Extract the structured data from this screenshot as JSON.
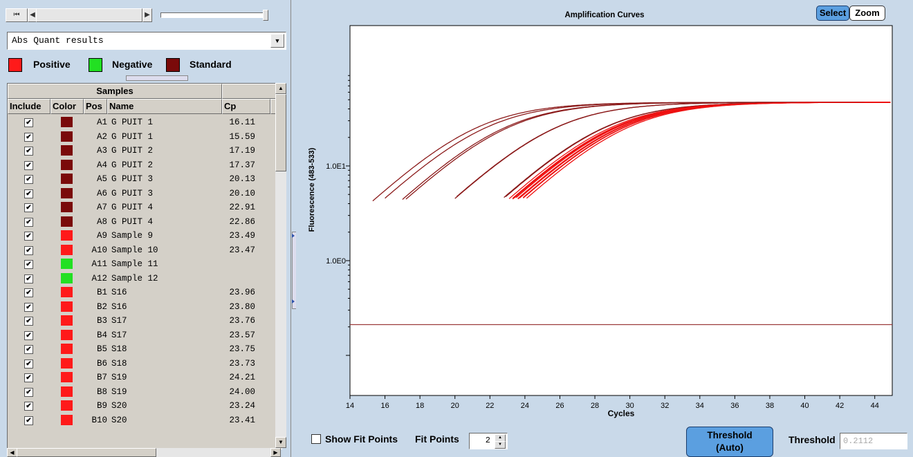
{
  "toolbar": {
    "nav_first_icon": "skip-start-icon",
    "nav_prev_icon": "arrow-left-icon",
    "nav_next_icon": "arrow-right-icon"
  },
  "dropdown": {
    "value": "Abs Quant results"
  },
  "legend": [
    {
      "label": "Positive",
      "color": "#ff1a1a"
    },
    {
      "label": "Negative",
      "color": "#22e022"
    },
    {
      "label": "Standard",
      "color": "#7a0a0a"
    }
  ],
  "table": {
    "group_header": "Samples",
    "headers": {
      "include": "Include",
      "color": "Color",
      "pos": "Pos",
      "name": "Name",
      "cp": "Cp"
    },
    "rows": [
      {
        "pos": "A1",
        "name": "G PUIT 1",
        "cp": "16.11",
        "type": "standard"
      },
      {
        "pos": "A2",
        "name": "G PUIT 1",
        "cp": "15.59",
        "type": "standard"
      },
      {
        "pos": "A3",
        "name": "G PUIT 2",
        "cp": "17.19",
        "type": "standard"
      },
      {
        "pos": "A4",
        "name": "G PUIT 2",
        "cp": "17.37",
        "type": "standard"
      },
      {
        "pos": "A5",
        "name": "G PUIT 3",
        "cp": "20.13",
        "type": "standard"
      },
      {
        "pos": "A6",
        "name": "G PUIT 3",
        "cp": "20.10",
        "type": "standard"
      },
      {
        "pos": "A7",
        "name": "G PUIT 4",
        "cp": "22.91",
        "type": "standard"
      },
      {
        "pos": "A8",
        "name": "G PUIT 4",
        "cp": "22.86",
        "type": "standard"
      },
      {
        "pos": "A9",
        "name": "Sample 9",
        "cp": "23.49",
        "type": "positive"
      },
      {
        "pos": "A10",
        "name": "Sample 10",
        "cp": "23.47",
        "type": "positive"
      },
      {
        "pos": "A11",
        "name": "Sample 11",
        "cp": "",
        "type": "negative"
      },
      {
        "pos": "A12",
        "name": "Sample 12",
        "cp": "",
        "type": "negative"
      },
      {
        "pos": "B1",
        "name": "S16",
        "cp": "23.96",
        "type": "positive"
      },
      {
        "pos": "B2",
        "name": "S16",
        "cp": "23.80",
        "type": "positive"
      },
      {
        "pos": "B3",
        "name": "S17",
        "cp": "23.76",
        "type": "positive"
      },
      {
        "pos": "B4",
        "name": "S17",
        "cp": "23.57",
        "type": "positive"
      },
      {
        "pos": "B5",
        "name": "S18",
        "cp": "23.75",
        "type": "positive"
      },
      {
        "pos": "B6",
        "name": "S18",
        "cp": "23.73",
        "type": "positive"
      },
      {
        "pos": "B7",
        "name": "S19",
        "cp": "24.21",
        "type": "positive"
      },
      {
        "pos": "B8",
        "name": "S19",
        "cp": "24.00",
        "type": "positive"
      },
      {
        "pos": "B9",
        "name": "S20",
        "cp": "23.24",
        "type": "positive"
      },
      {
        "pos": "B10",
        "name": "S20",
        "cp": "23.41",
        "type": "positive"
      }
    ]
  },
  "chart_header": {
    "title": "Amplification Curves",
    "select_label": "Select",
    "zoom_label": "Zoom"
  },
  "chart_data": {
    "type": "line",
    "title": "Amplification Curves",
    "xlabel": "Cycles",
    "ylabel": "Fluorescence (483-533)",
    "xlim": [
      14,
      45
    ],
    "x_ticks": [
      "14",
      "16",
      "18",
      "20",
      "22",
      "24",
      "26",
      "28",
      "30",
      "32",
      "34",
      "36",
      "38",
      "40",
      "42",
      "44"
    ],
    "y_scale": "log",
    "y_ticks": [
      "1.0E0",
      "1.0E1"
    ],
    "threshold": 0.2112,
    "plateau": 47,
    "series": [
      {
        "cp": 16.11,
        "color": "#8b1a1a",
        "start_x": 16.0
      },
      {
        "cp": 15.59,
        "color": "#8b1a1a",
        "start_x": 15.3
      },
      {
        "cp": 17.19,
        "color": "#8b1a1a",
        "start_x": 17.0
      },
      {
        "cp": 17.37,
        "color": "#8b1a1a",
        "start_x": 17.2
      },
      {
        "cp": 20.13,
        "color": "#8b1a1a",
        "start_x": 20.0
      },
      {
        "cp": 20.1,
        "color": "#8b1a1a",
        "start_x": 20.1
      },
      {
        "cp": 22.91,
        "color": "#8b1a1a",
        "start_x": 22.9
      },
      {
        "cp": 22.86,
        "color": "#8b1a1a",
        "start_x": 22.8
      },
      {
        "cp": 23.49,
        "color": "#ee1111",
        "start_x": 23.4
      },
      {
        "cp": 23.47,
        "color": "#ee1111",
        "start_x": 23.3
      },
      {
        "cp": 23.96,
        "color": "#ee1111",
        "start_x": 23.9
      },
      {
        "cp": 23.8,
        "color": "#ee1111",
        "start_x": 23.7
      },
      {
        "cp": 23.76,
        "color": "#ee1111",
        "start_x": 23.6
      },
      {
        "cp": 23.57,
        "color": "#ee1111",
        "start_x": 23.5
      },
      {
        "cp": 23.75,
        "color": "#ee1111",
        "start_x": 23.6
      },
      {
        "cp": 23.73,
        "color": "#ee1111",
        "start_x": 23.6
      },
      {
        "cp": 24.21,
        "color": "#ee1111",
        "start_x": 24.1
      },
      {
        "cp": 24.0,
        "color": "#ee1111",
        "start_x": 23.9
      },
      {
        "cp": 23.24,
        "color": "#ee1111",
        "start_x": 23.1
      },
      {
        "cp": 23.41,
        "color": "#ee1111",
        "start_x": 23.3
      }
    ]
  },
  "bottom": {
    "show_fit_label": "Show Fit Points",
    "fit_points_label": "Fit Points",
    "fit_points_value": "2",
    "threshold_button_line1": "Threshold",
    "threshold_button_line2": "(Auto)",
    "threshold_label": "Threshold",
    "threshold_value": "0.2112"
  }
}
